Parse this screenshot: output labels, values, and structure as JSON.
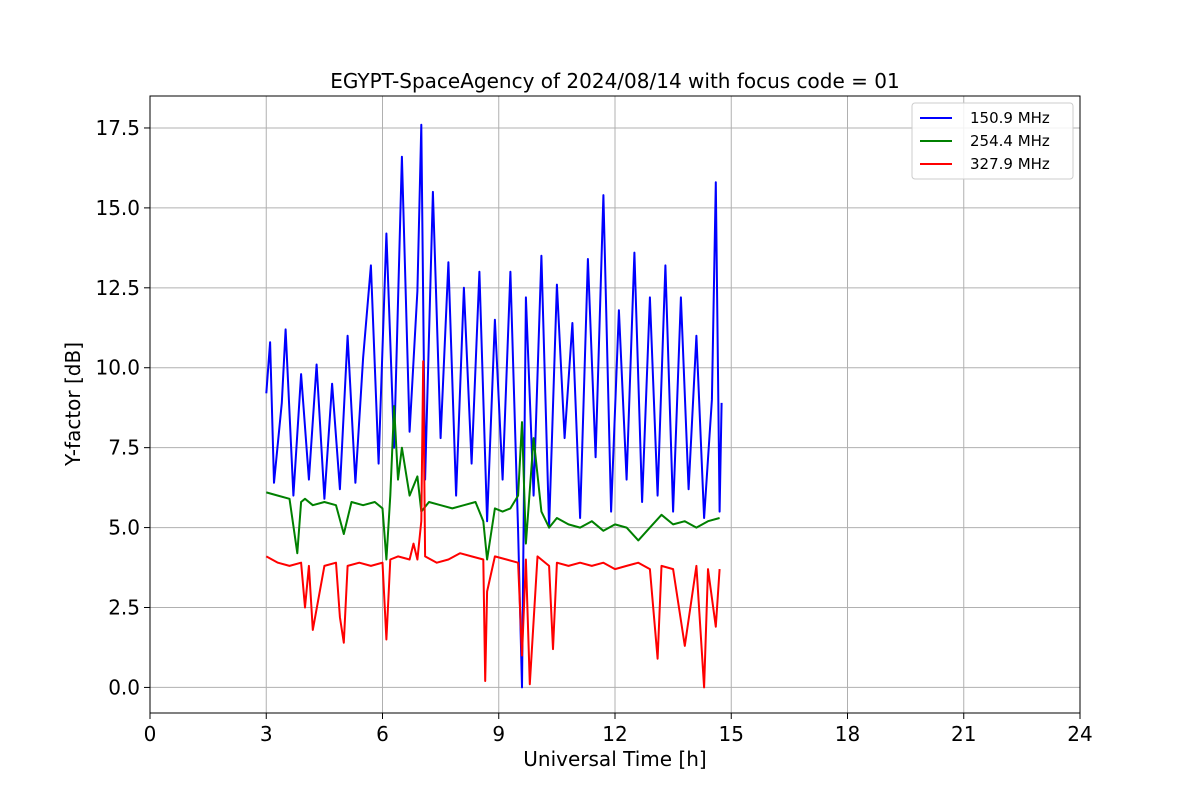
{
  "chart_data": {
    "type": "line",
    "title": "EGYPT-SpaceAgency of 2024/08/14 with focus code = 01",
    "xlabel": "Universal Time [h]",
    "ylabel": "Y-factor [dB]",
    "xlim": [
      0,
      24
    ],
    "ylim": [
      -0.8,
      18.5
    ],
    "xticks": [
      0,
      3,
      6,
      9,
      12,
      15,
      18,
      21,
      24
    ],
    "xtick_labels": [
      "0",
      "3",
      "6",
      "9",
      "12",
      "15",
      "18",
      "21",
      "24"
    ],
    "yticks": [
      0,
      2.5,
      5,
      7.5,
      10,
      12.5,
      15,
      17.5
    ],
    "ytick_labels": [
      "0.0",
      "2.5",
      "5.0",
      "7.5",
      "10.0",
      "12.5",
      "15.0",
      "17.5"
    ],
    "grid": true,
    "legend_position": "top-right",
    "series": [
      {
        "name": "150.9 MHz",
        "color": "#0000ff",
        "x": [
          3.0,
          3.1,
          3.2,
          3.4,
          3.5,
          3.7,
          3.9,
          4.1,
          4.3,
          4.5,
          4.7,
          4.9,
          5.1,
          5.3,
          5.5,
          5.7,
          5.9,
          6.1,
          6.3,
          6.5,
          6.7,
          6.9,
          7.0,
          7.1,
          7.3,
          7.5,
          7.7,
          7.9,
          8.1,
          8.3,
          8.5,
          8.7,
          8.9,
          9.1,
          9.3,
          9.5,
          9.6,
          9.7,
          9.9,
          10.1,
          10.3,
          10.5,
          10.7,
          10.9,
          11.1,
          11.3,
          11.5,
          11.7,
          11.9,
          12.1,
          12.3,
          12.5,
          12.7,
          12.9,
          13.1,
          13.3,
          13.5,
          13.7,
          13.9,
          14.1,
          14.3,
          14.5,
          14.6,
          14.7,
          14.75
        ],
        "y": [
          9.2,
          10.8,
          6.4,
          8.9,
          11.2,
          6.0,
          9.8,
          6.5,
          10.1,
          5.9,
          9.5,
          6.2,
          11.0,
          6.4,
          10.3,
          13.2,
          7.0,
          14.2,
          7.5,
          16.6,
          8.0,
          12.4,
          17.6,
          6.5,
          15.5,
          7.8,
          13.3,
          6.0,
          12.5,
          7.0,
          13.0,
          5.2,
          11.5,
          6.5,
          13.0,
          4.9,
          0.0,
          12.2,
          6.0,
          13.5,
          5.0,
          12.6,
          7.8,
          11.4,
          5.3,
          13.4,
          7.2,
          15.4,
          5.5,
          11.8,
          6.5,
          13.6,
          5.8,
          12.2,
          6.0,
          13.2,
          5.5,
          12.2,
          6.2,
          11.0,
          5.3,
          9.0,
          15.8,
          5.5,
          8.9
        ]
      },
      {
        "name": "254.4 MHz",
        "color": "#008000",
        "x": [
          3.0,
          3.3,
          3.6,
          3.8,
          3.9,
          4.0,
          4.2,
          4.5,
          4.8,
          5.0,
          5.2,
          5.5,
          5.8,
          6.0,
          6.1,
          6.2,
          6.3,
          6.4,
          6.5,
          6.7,
          6.9,
          7.0,
          7.2,
          7.5,
          7.8,
          8.1,
          8.4,
          8.6,
          8.7,
          8.9,
          9.1,
          9.3,
          9.5,
          9.6,
          9.7,
          9.9,
          10.1,
          10.3,
          10.5,
          10.8,
          11.1,
          11.4,
          11.7,
          12.0,
          12.3,
          12.6,
          12.9,
          13.2,
          13.5,
          13.8,
          14.1,
          14.4,
          14.7
        ],
        "y": [
          6.1,
          6.0,
          5.9,
          4.2,
          5.8,
          5.9,
          5.7,
          5.8,
          5.7,
          4.8,
          5.8,
          5.7,
          5.8,
          5.6,
          4.0,
          6.0,
          8.8,
          6.5,
          7.5,
          6.0,
          6.6,
          5.5,
          5.8,
          5.7,
          5.6,
          5.7,
          5.8,
          5.2,
          4.0,
          5.6,
          5.5,
          5.6,
          6.0,
          8.3,
          4.5,
          7.8,
          5.5,
          5.0,
          5.3,
          5.1,
          5.0,
          5.2,
          4.9,
          5.1,
          5.0,
          4.6,
          5.0,
          5.4,
          5.1,
          5.2,
          5.0,
          5.2,
          5.3
        ]
      },
      {
        "name": "327.9 MHz",
        "color": "#ff0000",
        "x": [
          3.0,
          3.3,
          3.6,
          3.9,
          4.0,
          4.1,
          4.2,
          4.5,
          4.8,
          4.9,
          5.0,
          5.1,
          5.4,
          5.7,
          6.0,
          6.1,
          6.2,
          6.4,
          6.7,
          6.8,
          6.9,
          7.0,
          7.05,
          7.1,
          7.4,
          7.7,
          8.0,
          8.3,
          8.6,
          8.65,
          8.7,
          8.9,
          9.2,
          9.5,
          9.6,
          9.7,
          9.8,
          10.0,
          10.3,
          10.4,
          10.5,
          10.8,
          11.1,
          11.4,
          11.7,
          12.0,
          12.3,
          12.6,
          12.9,
          13.1,
          13.2,
          13.5,
          13.8,
          14.1,
          14.3,
          14.4,
          14.6,
          14.7
        ],
        "y": [
          4.1,
          3.9,
          3.8,
          3.9,
          2.5,
          3.8,
          1.8,
          3.8,
          3.9,
          2.2,
          1.4,
          3.8,
          3.9,
          3.8,
          3.9,
          1.5,
          4.0,
          4.1,
          4.0,
          4.5,
          4.0,
          5.2,
          10.2,
          4.1,
          3.9,
          4.0,
          4.2,
          4.1,
          4.0,
          0.2,
          3.0,
          4.1,
          4.0,
          3.9,
          1.0,
          4.0,
          0.1,
          4.1,
          3.8,
          1.2,
          3.9,
          3.8,
          3.9,
          3.8,
          3.9,
          3.7,
          3.8,
          3.9,
          3.7,
          0.9,
          3.8,
          3.7,
          1.3,
          3.8,
          0.0,
          3.7,
          1.9,
          3.7
        ]
      }
    ]
  }
}
